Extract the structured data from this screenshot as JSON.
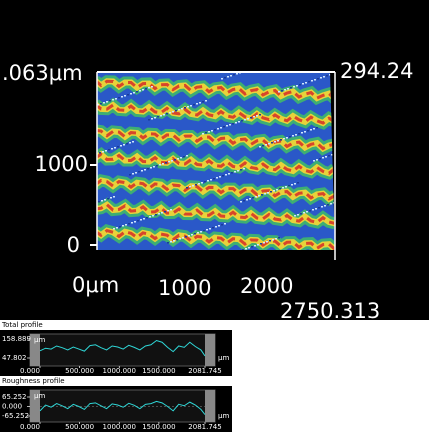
{
  "surface": {
    "z_top_label": ".063μm",
    "z_right_label": "294.24",
    "y_labels": [
      "1000",
      "0"
    ],
    "x_labels": [
      "0μm",
      "1000",
      "2000"
    ],
    "x_end_label": "2750.313"
  },
  "profiles": [
    {
      "title": "Total profile",
      "unit": "μm",
      "color": "#2fd6d6",
      "xlim": [
        0,
        2081.745
      ],
      "xticks": [
        {
          "value": 0,
          "label": "0.000"
        },
        {
          "value": 500,
          "label": "500.000"
        },
        {
          "value": 1000,
          "label": "1000.000"
        },
        {
          "value": 1500,
          "label": "1500.000"
        },
        {
          "value": 2081.745,
          "label": "2081.745"
        }
      ],
      "ylim": [
        47.802,
        158.889
      ],
      "yticks": [
        158.889,
        47.802
      ],
      "x": [
        0,
        70,
        140,
        210,
        280,
        350,
        420,
        490,
        560,
        630,
        700,
        770,
        840,
        910,
        980,
        1050,
        1120,
        1190,
        1260,
        1330,
        1400,
        1470,
        1540,
        1610,
        1680,
        1750,
        1820,
        1890,
        1960,
        2030,
        2081.745
      ],
      "values": [
        90,
        105,
        100,
        118,
        108,
        95,
        112,
        100,
        88,
        120,
        125,
        108,
        95,
        118,
        112,
        100,
        122,
        110,
        95,
        118,
        125,
        150,
        140,
        110,
        85,
        118,
        110,
        140,
        115,
        95,
        60
      ]
    },
    {
      "title": "Roughness profile",
      "unit": "μm",
      "color": "#2fd6d6",
      "xlim": [
        0,
        2081.745
      ],
      "xticks": [
        {
          "value": 0,
          "label": "0.000"
        },
        {
          "value": 500,
          "label": "500.000"
        },
        {
          "value": 1000,
          "label": "1000.000"
        },
        {
          "value": 1500,
          "label": "1500.000"
        },
        {
          "value": 2081.745,
          "label": "2081.745"
        }
      ],
      "ylim": [
        -65.252,
        65.252
      ],
      "yticks": [
        65.252,
        {
          "value": 0,
          "label": "0.000"
        },
        -65.252
      ],
      "x": [
        0,
        70,
        140,
        210,
        280,
        350,
        420,
        490,
        560,
        630,
        700,
        770,
        840,
        910,
        980,
        1050,
        1120,
        1190,
        1260,
        1330,
        1400,
        1470,
        1540,
        1610,
        1680,
        1750,
        1820,
        1890,
        1960,
        2030,
        2081.745
      ],
      "values": [
        -30,
        10,
        -5,
        20,
        5,
        -15,
        15,
        0,
        -20,
        20,
        25,
        5,
        -15,
        18,
        10,
        -5,
        22,
        8,
        -15,
        15,
        20,
        35,
        25,
        0,
        -30,
        15,
        5,
        30,
        10,
        -20,
        -55
      ]
    }
  ]
}
